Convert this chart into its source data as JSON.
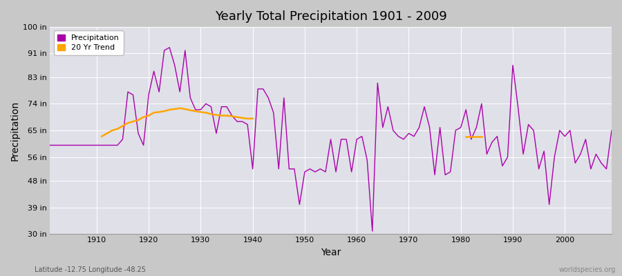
{
  "title": "Yearly Total Precipitation 1901 - 2009",
  "xlabel": "Year",
  "ylabel": "Precipitation",
  "ylim": [
    30,
    100
  ],
  "yticks": [
    30,
    39,
    48,
    56,
    65,
    74,
    83,
    91,
    100
  ],
  "ytick_labels": [
    "30 in",
    "39 in",
    "48 in",
    "56 in",
    "65 in",
    "74 in",
    "83 in",
    "91 in",
    "100 in"
  ],
  "fig_bg_color": "#c8c8c8",
  "plot_bg_color": "#e0e0e8",
  "grid_color": "#ffffff",
  "precip_color": "#aa00aa",
  "trend_color": "#ffa500",
  "precip_linewidth": 1.0,
  "trend_linewidth": 1.8,
  "years": [
    1901,
    1902,
    1903,
    1904,
    1905,
    1906,
    1907,
    1908,
    1909,
    1910,
    1911,
    1912,
    1913,
    1914,
    1915,
    1916,
    1917,
    1918,
    1919,
    1920,
    1921,
    1922,
    1923,
    1924,
    1925,
    1926,
    1927,
    1928,
    1929,
    1930,
    1931,
    1932,
    1933,
    1934,
    1935,
    1936,
    1937,
    1938,
    1939,
    1940,
    1941,
    1942,
    1943,
    1944,
    1945,
    1946,
    1947,
    1948,
    1949,
    1950,
    1951,
    1952,
    1953,
    1954,
    1955,
    1956,
    1957,
    1958,
    1959,
    1960,
    1961,
    1962,
    1963,
    1964,
    1965,
    1966,
    1967,
    1968,
    1969,
    1970,
    1971,
    1972,
    1973,
    1974,
    1975,
    1976,
    1977,
    1978,
    1979,
    1980,
    1981,
    1982,
    1983,
    1984,
    1985,
    1986,
    1987,
    1988,
    1989,
    1990,
    1991,
    1992,
    1993,
    1994,
    1995,
    1996,
    1997,
    1998,
    1999,
    2000,
    2001,
    2002,
    2003,
    2004,
    2005,
    2006,
    2007,
    2008,
    2009
  ],
  "precip": [
    60,
    60,
    60,
    60,
    60,
    60,
    60,
    60,
    60,
    60,
    60,
    60,
    60,
    60,
    62,
    78,
    77,
    64,
    60,
    77,
    85,
    78,
    92,
    93,
    87,
    78,
    92,
    76,
    72,
    72,
    74,
    73,
    64,
    73,
    73,
    70,
    68,
    68,
    67,
    52,
    79,
    79,
    76,
    71,
    52,
    76,
    52,
    52,
    40,
    51,
    52,
    51,
    52,
    51,
    62,
    51,
    62,
    62,
    51,
    62,
    63,
    55,
    31,
    81,
    66,
    73,
    65,
    63,
    62,
    64,
    63,
    66,
    73,
    66,
    50,
    66,
    50,
    51,
    65,
    66,
    72,
    62,
    66,
    74,
    57,
    61,
    63,
    53,
    56,
    87,
    73,
    57,
    67,
    65,
    52,
    58,
    40,
    56,
    65,
    63,
    65,
    54,
    57,
    62,
    52,
    57,
    54,
    52,
    65
  ],
  "trend_years_1": [
    1911,
    1912,
    1913,
    1914,
    1915,
    1916,
    1917,
    1918,
    1919,
    1920,
    1921,
    1922,
    1923,
    1924,
    1925,
    1926,
    1927,
    1928,
    1929,
    1930,
    1931,
    1932,
    1933,
    1934,
    1935,
    1936,
    1937,
    1938,
    1939,
    1940
  ],
  "trend_vals_1": [
    63,
    64,
    65,
    65.5,
    66.5,
    67.5,
    68,
    68.5,
    69.5,
    70,
    71,
    71.2,
    71.5,
    72,
    72.2,
    72.5,
    72.2,
    71.8,
    71.5,
    71.2,
    71,
    70.5,
    70.2,
    70,
    70,
    69.8,
    69.5,
    69.2,
    69,
    69
  ],
  "trend_years_2": [
    1981,
    1982,
    1983,
    1984
  ],
  "trend_vals_2": [
    63,
    63,
    63,
    63
  ],
  "xticks": [
    1910,
    1920,
    1930,
    1940,
    1950,
    1960,
    1970,
    1980,
    1990,
    2000
  ],
  "footnote_left": "Latitude -12.75 Longitude -48.25",
  "footnote_right": "worldspecies.org"
}
